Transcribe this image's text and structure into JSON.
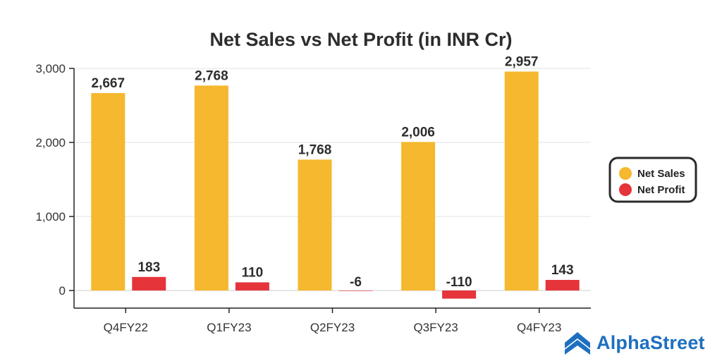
{
  "chart_data": {
    "type": "bar",
    "title": "Net Sales vs Net Profit (in INR Cr)",
    "categories": [
      "Q4FY22",
      "Q1FY23",
      "Q2FY23",
      "Q3FY23",
      "Q4FY23"
    ],
    "series": [
      {
        "name": "Net Sales",
        "color": "#f5b82e",
        "values": [
          2667,
          2768,
          1768,
          2006,
          2957
        ],
        "labels": [
          "2,667",
          "2,768",
          "1,768",
          "2,006",
          "2,957"
        ]
      },
      {
        "name": "Net Profit",
        "color": "#e5343a",
        "values": [
          183,
          110,
          -6,
          -110,
          143
        ],
        "labels": [
          "183",
          "110",
          "-6",
          "-110",
          "143"
        ]
      }
    ],
    "yticks": [
      "3,000",
      "2,000",
      "1,000",
      "0"
    ],
    "ytick_values": [
      3000,
      2000,
      1000,
      0
    ],
    "ylim": [
      -250,
      3000
    ],
    "grid": true,
    "legend_position": "right"
  },
  "brand": {
    "name": "AlphaStreet",
    "color": "#1e6fc0",
    "icon": "alphastreet-logo-icon"
  }
}
